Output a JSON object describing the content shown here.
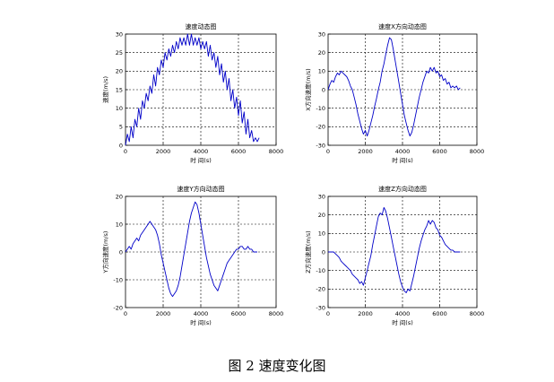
{
  "caption": "图 2  速度变化图",
  "colors": {
    "line": "#0000c8",
    "axis": "#000000",
    "grid": "#000000"
  },
  "chart_data": [
    {
      "type": "line",
      "title": "速度动态图",
      "xlabel": "时 间(s)",
      "ylabel": "速度(m/s)",
      "xlim": [
        0,
        8000
      ],
      "ylim": [
        0,
        30
      ],
      "xticks": [
        0,
        2000,
        4000,
        6000,
        8000
      ],
      "yticks": [
        0,
        5,
        10,
        15,
        20,
        25,
        30
      ],
      "grid": true,
      "series": [
        {
          "x": [
            0,
            100,
            200,
            300,
            400,
            500,
            600,
            700,
            800,
            900,
            1000,
            1100,
            1200,
            1300,
            1400,
            1500,
            1600,
            1700,
            1800,
            1900,
            2000,
            2100,
            2200,
            2300,
            2400,
            2500,
            2600,
            2700,
            2800,
            2900,
            3000,
            3100,
            3200,
            3300,
            3400,
            3500,
            3600,
            3700,
            3800,
            3900,
            4000,
            4100,
            4200,
            4300,
            4400,
            4500,
            4600,
            4700,
            4800,
            4900,
            5000,
            5100,
            5200,
            5300,
            5400,
            5500,
            5600,
            5700,
            5800,
            5900,
            6000,
            6100,
            6200,
            6300,
            6400,
            6500,
            6600,
            6700,
            6800,
            6900,
            7000,
            7100
          ],
          "y": [
            0,
            3,
            1,
            5,
            2,
            7,
            5,
            10,
            7,
            12,
            10,
            14,
            12,
            16,
            14,
            19,
            16,
            21,
            19,
            23,
            21,
            25,
            23,
            26,
            24,
            27,
            25,
            28,
            26,
            29,
            27,
            29,
            27,
            30,
            27,
            30,
            27,
            29,
            27,
            29,
            26,
            28,
            26,
            28,
            24,
            27,
            23,
            25,
            21,
            24,
            19,
            22,
            17,
            20,
            15,
            18,
            12,
            15,
            10,
            13,
            8,
            12,
            6,
            9,
            3,
            7,
            2,
            4,
            1,
            2,
            1,
            2
          ]
        }
      ]
    },
    {
      "type": "line",
      "title": "速度X方向动态图",
      "xlabel": "时 间(s)",
      "ylabel": "X方向速度(m/s)",
      "xlim": [
        0,
        8000
      ],
      "ylim": [
        -30,
        30
      ],
      "xticks": [
        0,
        2000,
        4000,
        6000,
        8000
      ],
      "yticks": [
        -30,
        -20,
        -10,
        0,
        10,
        20,
        30
      ],
      "grid": true,
      "series": [
        {
          "x": [
            0,
            100,
            200,
            300,
            400,
            500,
            600,
            700,
            800,
            900,
            1000,
            1100,
            1200,
            1300,
            1400,
            1500,
            1600,
            1700,
            1800,
            1900,
            2000,
            2100,
            2200,
            2300,
            2400,
            2500,
            2600,
            2700,
            2800,
            2900,
            3000,
            3100,
            3200,
            3300,
            3400,
            3500,
            3600,
            3700,
            3800,
            3900,
            4000,
            4100,
            4200,
            4300,
            4400,
            4500,
            4600,
            4700,
            4800,
            4900,
            5000,
            5100,
            5200,
            5300,
            5400,
            5500,
            5600,
            5700,
            5800,
            5900,
            6000,
            6100,
            6200,
            6300,
            6400,
            6500,
            6600,
            6700,
            6800,
            6900,
            7000,
            7100
          ],
          "y": [
            0,
            3,
            5,
            4,
            7,
            9,
            8,
            10,
            9,
            8,
            7,
            5,
            2,
            0,
            -4,
            -8,
            -13,
            -17,
            -21,
            -24,
            -22,
            -25,
            -22,
            -18,
            -14,
            -9,
            -5,
            0,
            4,
            10,
            14,
            19,
            24,
            28,
            27,
            22,
            16,
            10,
            4,
            -2,
            -8,
            -14,
            -18,
            -22,
            -25,
            -23,
            -19,
            -14,
            -9,
            -4,
            0,
            4,
            7,
            10,
            9,
            12,
            10,
            12,
            9,
            10,
            7,
            8,
            5,
            6,
            3,
            4,
            1,
            2,
            1,
            2,
            0,
            1
          ]
        }
      ]
    },
    {
      "type": "line",
      "title": "速度Y方向动态图",
      "xlabel": "时 间(s)",
      "ylabel": "Y方向速度(m/s)",
      "xlim": [
        0,
        8000
      ],
      "ylim": [
        -20,
        20
      ],
      "xticks": [
        0,
        2000,
        4000,
        6000,
        8000
      ],
      "yticks": [
        -20,
        -10,
        0,
        10,
        20
      ],
      "grid": true,
      "series": [
        {
          "x": [
            0,
            100,
            200,
            300,
            400,
            500,
            600,
            700,
            800,
            900,
            1000,
            1100,
            1200,
            1300,
            1400,
            1500,
            1600,
            1700,
            1800,
            1900,
            2000,
            2100,
            2200,
            2300,
            2400,
            2500,
            2600,
            2700,
            2800,
            2900,
            3000,
            3100,
            3200,
            3300,
            3400,
            3500,
            3600,
            3700,
            3800,
            3900,
            4000,
            4100,
            4200,
            4300,
            4400,
            4500,
            4600,
            4700,
            4800,
            4900,
            5000,
            5100,
            5200,
            5300,
            5400,
            5500,
            5600,
            5700,
            5800,
            5900,
            6000,
            6100,
            6200,
            6300,
            6400,
            6500,
            6600,
            6700,
            6800,
            6900,
            7000
          ],
          "y": [
            0,
            1,
            2,
            1,
            3,
            4,
            5,
            4,
            6,
            7,
            8,
            9,
            10,
            11,
            10,
            9,
            8,
            6,
            3,
            -1,
            -4,
            -7,
            -10,
            -13,
            -15,
            -16,
            -15,
            -14,
            -12,
            -9,
            -5,
            -1,
            3,
            7,
            11,
            14,
            16,
            18,
            17,
            14,
            10,
            6,
            2,
            -2,
            -5,
            -8,
            -10,
            -12,
            -13,
            -14,
            -12,
            -10,
            -8,
            -6,
            -4,
            -3,
            -2,
            -1,
            0,
            1,
            1,
            2,
            2,
            1,
            1,
            2,
            1,
            1,
            0,
            0,
            0
          ]
        }
      ]
    },
    {
      "type": "line",
      "title": "速度Z方向动态图",
      "xlabel": "时 间(s)",
      "ylabel": "Z方向速度(m/s)",
      "xlim": [
        0,
        8000
      ],
      "ylim": [
        -30,
        30
      ],
      "xticks": [
        0,
        2000,
        4000,
        6000,
        8000
      ],
      "yticks": [
        -30,
        -20,
        -10,
        0,
        10,
        20,
        30
      ],
      "grid": true,
      "series": [
        {
          "x": [
            0,
            100,
            200,
            300,
            400,
            500,
            600,
            700,
            800,
            900,
            1000,
            1100,
            1200,
            1300,
            1400,
            1500,
            1600,
            1700,
            1800,
            1900,
            2000,
            2100,
            2200,
            2300,
            2400,
            2500,
            2600,
            2700,
            2800,
            2900,
            3000,
            3100,
            3200,
            3300,
            3400,
            3500,
            3600,
            3700,
            3800,
            3900,
            4000,
            4100,
            4200,
            4300,
            4400,
            4500,
            4600,
            4700,
            4800,
            4900,
            5000,
            5100,
            5200,
            5300,
            5400,
            5500,
            5600,
            5700,
            5800,
            5900,
            6000,
            6100,
            6200,
            6300,
            6400,
            6500,
            6600,
            6700,
            6800,
            6900,
            7000,
            7100
          ],
          "y": [
            0,
            0,
            0,
            0,
            -1,
            -2,
            -3,
            -5,
            -6,
            -7,
            -8,
            -9,
            -10,
            -12,
            -13,
            -14,
            -15,
            -17,
            -16,
            -18,
            -14,
            -10,
            -6,
            -2,
            4,
            9,
            14,
            19,
            21,
            20,
            24,
            22,
            18,
            13,
            8,
            3,
            -2,
            -7,
            -12,
            -16,
            -19,
            -21,
            -22,
            -20,
            -21,
            -17,
            -13,
            -8,
            -3,
            2,
            6,
            9,
            12,
            14,
            17,
            15,
            17,
            16,
            13,
            12,
            9,
            8,
            6,
            4,
            3,
            2,
            1,
            1,
            0,
            0,
            0,
            0
          ]
        }
      ]
    }
  ]
}
